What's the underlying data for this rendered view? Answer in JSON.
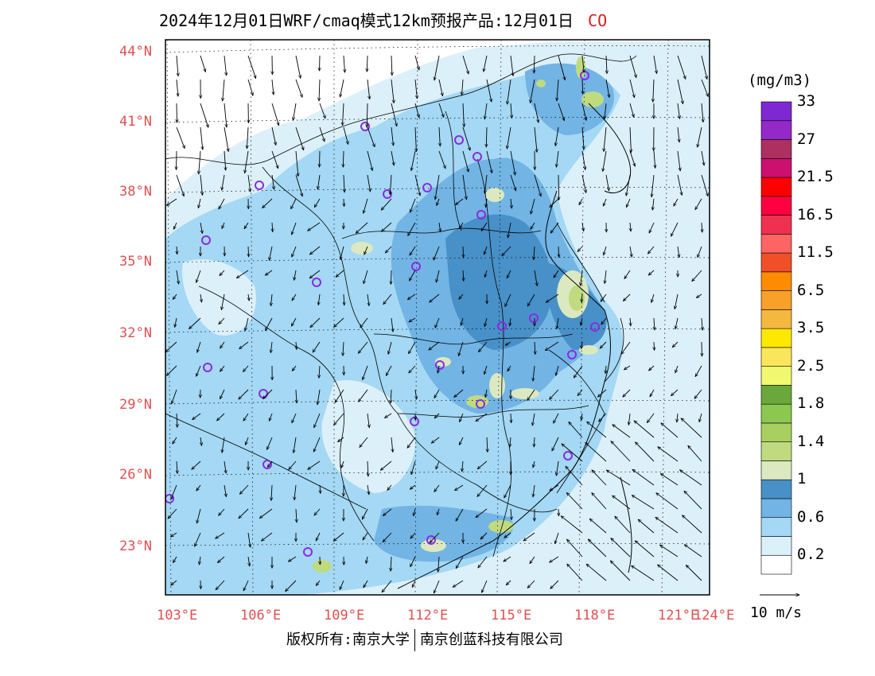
{
  "title": {
    "main": "2024年12月01日WRF/cmaq模式12km预报产品:12月01日",
    "species": "CO"
  },
  "colorbar": {
    "unit": "(mg/m3)",
    "colors": [
      "#ffffff",
      "#dcf0fa",
      "#a4d8f4",
      "#72b4e4",
      "#4890c8",
      "#dce8c0",
      "#c0da80",
      "#a8d060",
      "#8cc850",
      "#6aa83c",
      "#f0f870",
      "#fae65a",
      "#ffe800",
      "#f4b840",
      "#f8a028",
      "#ff8c00",
      "#f05028",
      "#ff6464",
      "#f03050",
      "#ff0040",
      "#ff0000",
      "#cc1070",
      "#ac3060",
      "#9428c8",
      "#7e28d2"
    ],
    "labels": [
      {
        "text": "0.2",
        "index": 1
      },
      {
        "text": "0.6",
        "index": 3
      },
      {
        "text": "1",
        "index": 5
      },
      {
        "text": "1.4",
        "index": 7
      },
      {
        "text": "1.8",
        "index": 9
      },
      {
        "text": "2.5",
        "index": 11
      },
      {
        "text": "3.5",
        "index": 13
      },
      {
        "text": "6.5",
        "index": 15
      },
      {
        "text": "11.5",
        "index": 17
      },
      {
        "text": "16.5",
        "index": 19
      },
      {
        "text": "21.5",
        "index": 21
      },
      {
        "text": "27",
        "index": 23
      },
      {
        "text": "33",
        "index": 25
      }
    ]
  },
  "vector_legend": "10 m/s",
  "latitudes": [
    "44°N",
    "41°N",
    "38°N",
    "35°N",
    "32°N",
    "29°N",
    "26°N",
    "23°N"
  ],
  "longitudes": [
    "103°E",
    "106°E",
    "109°E",
    "112°E",
    "115°E",
    "118°E",
    "121°E",
    "124°E"
  ],
  "footer": {
    "left": "版权所有:南京大学",
    "right": "南京创蓝科技有限公司"
  }
}
